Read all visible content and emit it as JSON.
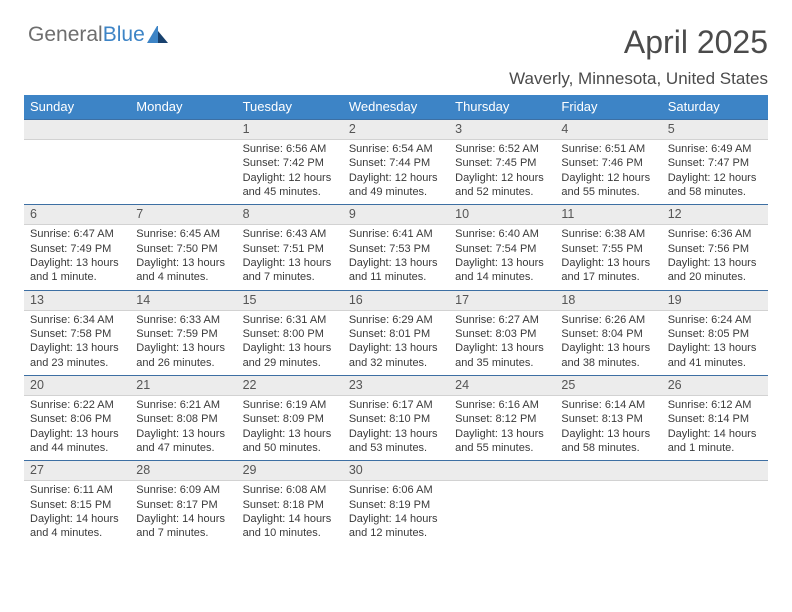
{
  "logo": {
    "general": "General",
    "blue": "Blue"
  },
  "title": "April 2025",
  "location": "Waverly, Minnesota, United States",
  "colors": {
    "accent": "#3d84c6",
    "headline_border": "#3d6fa3",
    "day_bg": "#ececec"
  },
  "columns": [
    "Sunday",
    "Monday",
    "Tuesday",
    "Wednesday",
    "Thursday",
    "Friday",
    "Saturday"
  ],
  "weeks": [
    [
      null,
      null,
      {
        "n": "1",
        "sunrise": "Sunrise: 6:56 AM",
        "sunset": "Sunset: 7:42 PM",
        "daylight": "Daylight: 12 hours and 45 minutes."
      },
      {
        "n": "2",
        "sunrise": "Sunrise: 6:54 AM",
        "sunset": "Sunset: 7:44 PM",
        "daylight": "Daylight: 12 hours and 49 minutes."
      },
      {
        "n": "3",
        "sunrise": "Sunrise: 6:52 AM",
        "sunset": "Sunset: 7:45 PM",
        "daylight": "Daylight: 12 hours and 52 minutes."
      },
      {
        "n": "4",
        "sunrise": "Sunrise: 6:51 AM",
        "sunset": "Sunset: 7:46 PM",
        "daylight": "Daylight: 12 hours and 55 minutes."
      },
      {
        "n": "5",
        "sunrise": "Sunrise: 6:49 AM",
        "sunset": "Sunset: 7:47 PM",
        "daylight": "Daylight: 12 hours and 58 minutes."
      }
    ],
    [
      {
        "n": "6",
        "sunrise": "Sunrise: 6:47 AM",
        "sunset": "Sunset: 7:49 PM",
        "daylight": "Daylight: 13 hours and 1 minute."
      },
      {
        "n": "7",
        "sunrise": "Sunrise: 6:45 AM",
        "sunset": "Sunset: 7:50 PM",
        "daylight": "Daylight: 13 hours and 4 minutes."
      },
      {
        "n": "8",
        "sunrise": "Sunrise: 6:43 AM",
        "sunset": "Sunset: 7:51 PM",
        "daylight": "Daylight: 13 hours and 7 minutes."
      },
      {
        "n": "9",
        "sunrise": "Sunrise: 6:41 AM",
        "sunset": "Sunset: 7:53 PM",
        "daylight": "Daylight: 13 hours and 11 minutes."
      },
      {
        "n": "10",
        "sunrise": "Sunrise: 6:40 AM",
        "sunset": "Sunset: 7:54 PM",
        "daylight": "Daylight: 13 hours and 14 minutes."
      },
      {
        "n": "11",
        "sunrise": "Sunrise: 6:38 AM",
        "sunset": "Sunset: 7:55 PM",
        "daylight": "Daylight: 13 hours and 17 minutes."
      },
      {
        "n": "12",
        "sunrise": "Sunrise: 6:36 AM",
        "sunset": "Sunset: 7:56 PM",
        "daylight": "Daylight: 13 hours and 20 minutes."
      }
    ],
    [
      {
        "n": "13",
        "sunrise": "Sunrise: 6:34 AM",
        "sunset": "Sunset: 7:58 PM",
        "daylight": "Daylight: 13 hours and 23 minutes."
      },
      {
        "n": "14",
        "sunrise": "Sunrise: 6:33 AM",
        "sunset": "Sunset: 7:59 PM",
        "daylight": "Daylight: 13 hours and 26 minutes."
      },
      {
        "n": "15",
        "sunrise": "Sunrise: 6:31 AM",
        "sunset": "Sunset: 8:00 PM",
        "daylight": "Daylight: 13 hours and 29 minutes."
      },
      {
        "n": "16",
        "sunrise": "Sunrise: 6:29 AM",
        "sunset": "Sunset: 8:01 PM",
        "daylight": "Daylight: 13 hours and 32 minutes."
      },
      {
        "n": "17",
        "sunrise": "Sunrise: 6:27 AM",
        "sunset": "Sunset: 8:03 PM",
        "daylight": "Daylight: 13 hours and 35 minutes."
      },
      {
        "n": "18",
        "sunrise": "Sunrise: 6:26 AM",
        "sunset": "Sunset: 8:04 PM",
        "daylight": "Daylight: 13 hours and 38 minutes."
      },
      {
        "n": "19",
        "sunrise": "Sunrise: 6:24 AM",
        "sunset": "Sunset: 8:05 PM",
        "daylight": "Daylight: 13 hours and 41 minutes."
      }
    ],
    [
      {
        "n": "20",
        "sunrise": "Sunrise: 6:22 AM",
        "sunset": "Sunset: 8:06 PM",
        "daylight": "Daylight: 13 hours and 44 minutes."
      },
      {
        "n": "21",
        "sunrise": "Sunrise: 6:21 AM",
        "sunset": "Sunset: 8:08 PM",
        "daylight": "Daylight: 13 hours and 47 minutes."
      },
      {
        "n": "22",
        "sunrise": "Sunrise: 6:19 AM",
        "sunset": "Sunset: 8:09 PM",
        "daylight": "Daylight: 13 hours and 50 minutes."
      },
      {
        "n": "23",
        "sunrise": "Sunrise: 6:17 AM",
        "sunset": "Sunset: 8:10 PM",
        "daylight": "Daylight: 13 hours and 53 minutes."
      },
      {
        "n": "24",
        "sunrise": "Sunrise: 6:16 AM",
        "sunset": "Sunset: 8:12 PM",
        "daylight": "Daylight: 13 hours and 55 minutes."
      },
      {
        "n": "25",
        "sunrise": "Sunrise: 6:14 AM",
        "sunset": "Sunset: 8:13 PM",
        "daylight": "Daylight: 13 hours and 58 minutes."
      },
      {
        "n": "26",
        "sunrise": "Sunrise: 6:12 AM",
        "sunset": "Sunset: 8:14 PM",
        "daylight": "Daylight: 14 hours and 1 minute."
      }
    ],
    [
      {
        "n": "27",
        "sunrise": "Sunrise: 6:11 AM",
        "sunset": "Sunset: 8:15 PM",
        "daylight": "Daylight: 14 hours and 4 minutes."
      },
      {
        "n": "28",
        "sunrise": "Sunrise: 6:09 AM",
        "sunset": "Sunset: 8:17 PM",
        "daylight": "Daylight: 14 hours and 7 minutes."
      },
      {
        "n": "29",
        "sunrise": "Sunrise: 6:08 AM",
        "sunset": "Sunset: 8:18 PM",
        "daylight": "Daylight: 14 hours and 10 minutes."
      },
      {
        "n": "30",
        "sunrise": "Sunrise: 6:06 AM",
        "sunset": "Sunset: 8:19 PM",
        "daylight": "Daylight: 14 hours and 12 minutes."
      },
      null,
      null,
      null
    ]
  ]
}
